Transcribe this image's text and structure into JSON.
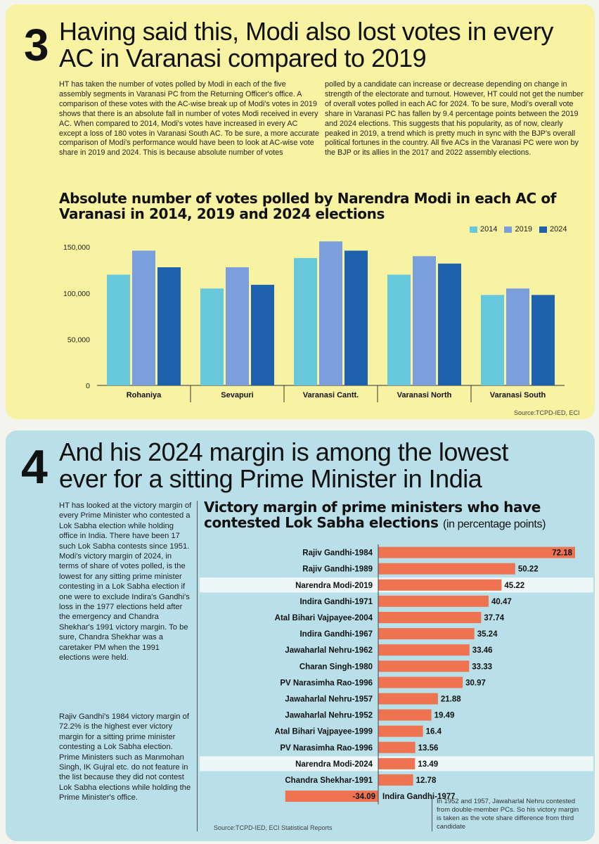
{
  "section3": {
    "number": "3",
    "headline_line1": "Having said this, Modi also lost votes in every",
    "headline_line2": "AC in Varanasi compared to 2019",
    "body_left": "HT has taken the number of votes polled by Modi in each of the five assembly segments in Varanasi PC from the Returning Officer's office. A comparison of these votes with the AC-wise break up of Modi's votes in 2019 shows that there is an absolute fall in number of votes Modi received in every AC. When compared to 2014, Modi's votes have increased in every AC except a loss of 180 votes in Varanasi South AC. To be sure, a more accurate comparison of Modi's performance would have been to look at AC-wise vote share in 2019 and 2024. This is because absolute number of votes",
    "body_right": "polled by a candidate can increase or decrease depending on change in strength of the electorate and turnout. However, HT could not get the number of overall votes polled in each AC for 2024. To be sure, Modi's overall vote share in Varanasi PC has fallen by 9.4 percentage points between the 2019 and 2024 elections. This suggests that his popularity, as of now, clearly peaked in 2019, a trend which is pretty much in sync with the BJP's overall political fortunes in the country. All five ACs in the Varanasi PC were won by the BJP or its allies in the 2017 and 2022 assembly elections.",
    "source": "Source:TCPD-IED, ECI"
  },
  "section4": {
    "number": "4",
    "headline_line1": "And his 2024 margin is among the lowest",
    "headline_line2": "ever for a sitting Prime Minister in India",
    "body_p1": "HT has looked at the victory margin of every Prime Minister who contested a Lok Sabha election while holding office in India. There have been 17 such Lok Sabha contests since 1951. Modi's victory margin of 2024, in terms of share of votes polled, is the lowest for any sitting prime minister contesting in a Lok Sabha election if one were to exclude Indira's Gandhi's loss in the 1977 elections held after the emergency and Chandra Shekhar's 1991 victory margin. To be sure, Chandra Shekhar was a caretaker PM when the 1991 elections were held.",
    "body_p2": "Rajiv Gandhi's 1984 victory margin of 72.2% is the highest ever victory margin for a sitting prime minister contesting a Lok Sabha election. Prime Ministers such as Manmohan Singh, IK Gujral etc. do not feature in the list because they did not contest Lok Sabha elections while holding the Prime Minister's office.",
    "note": "In 1952 and 1957, Jawaharlal Nehru contested from double-member PCs. So his victory margin is taken as the vote share difference from third candidate",
    "source": "Source:TCPD-IED, ECI Statistical Reports"
  },
  "chart_data": [
    {
      "type": "bar",
      "title": "Absolute number of votes polled by Narendra Modi in each AC of Varanasi in 2014, 2019 and 2024 elections",
      "categories": [
        "Rohaniya",
        "Sevapuri",
        "Varanasi Cantt.",
        "Varanasi North",
        "Varanasi South"
      ],
      "series": [
        {
          "name": "2014",
          "color": "#67c8dc",
          "values": [
            120000,
            105000,
            138000,
            120000,
            98000
          ]
        },
        {
          "name": "2019",
          "color": "#7a9fdc",
          "values": [
            146000,
            128000,
            156000,
            140000,
            105000
          ]
        },
        {
          "name": "2024",
          "color": "#1e62ad",
          "values": [
            128000,
            109000,
            146000,
            132000,
            98000
          ]
        }
      ],
      "yticks": [
        "0",
        "50,000",
        "100,000",
        "150,000"
      ],
      "ylim": [
        0,
        160000
      ],
      "legend_position": "top-right"
    },
    {
      "type": "bar",
      "orientation": "horizontal",
      "title_bold": "Victory margin of prime ministers who have contested Lok Sabha elections",
      "title_unit": "(in percentage points)",
      "bar_color": "#ee7351",
      "highlight_color": "#eef7f8",
      "categories": [
        "Rajiv Gandhi-1984",
        "Rajiv Gandhi-1989",
        "Narendra Modi-2019",
        "Indira Gandhi-1971",
        "Atal Bihari Vajpayee-2004",
        "Indira Gandhi-1967",
        "Jawaharlal Nehru-1962",
        "Charan Singh-1980",
        "PV Narasimha Rao-1996",
        "Jawaharlal Nehru-1957",
        "Jawaharlal Nehru-1952",
        "Atal Bihari Vajpayee-1999",
        "PV Narasimha Rao-1996",
        "Narendra Modi-2024",
        "Chandra Shekhar-1991",
        "Indira Gandhi-1977"
      ],
      "values": [
        72.18,
        50.22,
        45.22,
        40.47,
        37.74,
        35.24,
        33.46,
        33.33,
        30.97,
        21.88,
        19.49,
        16.4,
        13.56,
        13.49,
        12.78,
        -34.09
      ],
      "value_labels": [
        "72.18",
        "50.22",
        "45.22",
        "40.47",
        "37.74",
        "35.24",
        "33.46",
        "33.33",
        "30.97",
        "21.88",
        "19.49",
        "16.4",
        "13.56",
        "13.49",
        "12.78",
        "-34.09"
      ],
      "highlighted": [
        "Narendra Modi-2019",
        "Narendra Modi-2024"
      ]
    }
  ]
}
